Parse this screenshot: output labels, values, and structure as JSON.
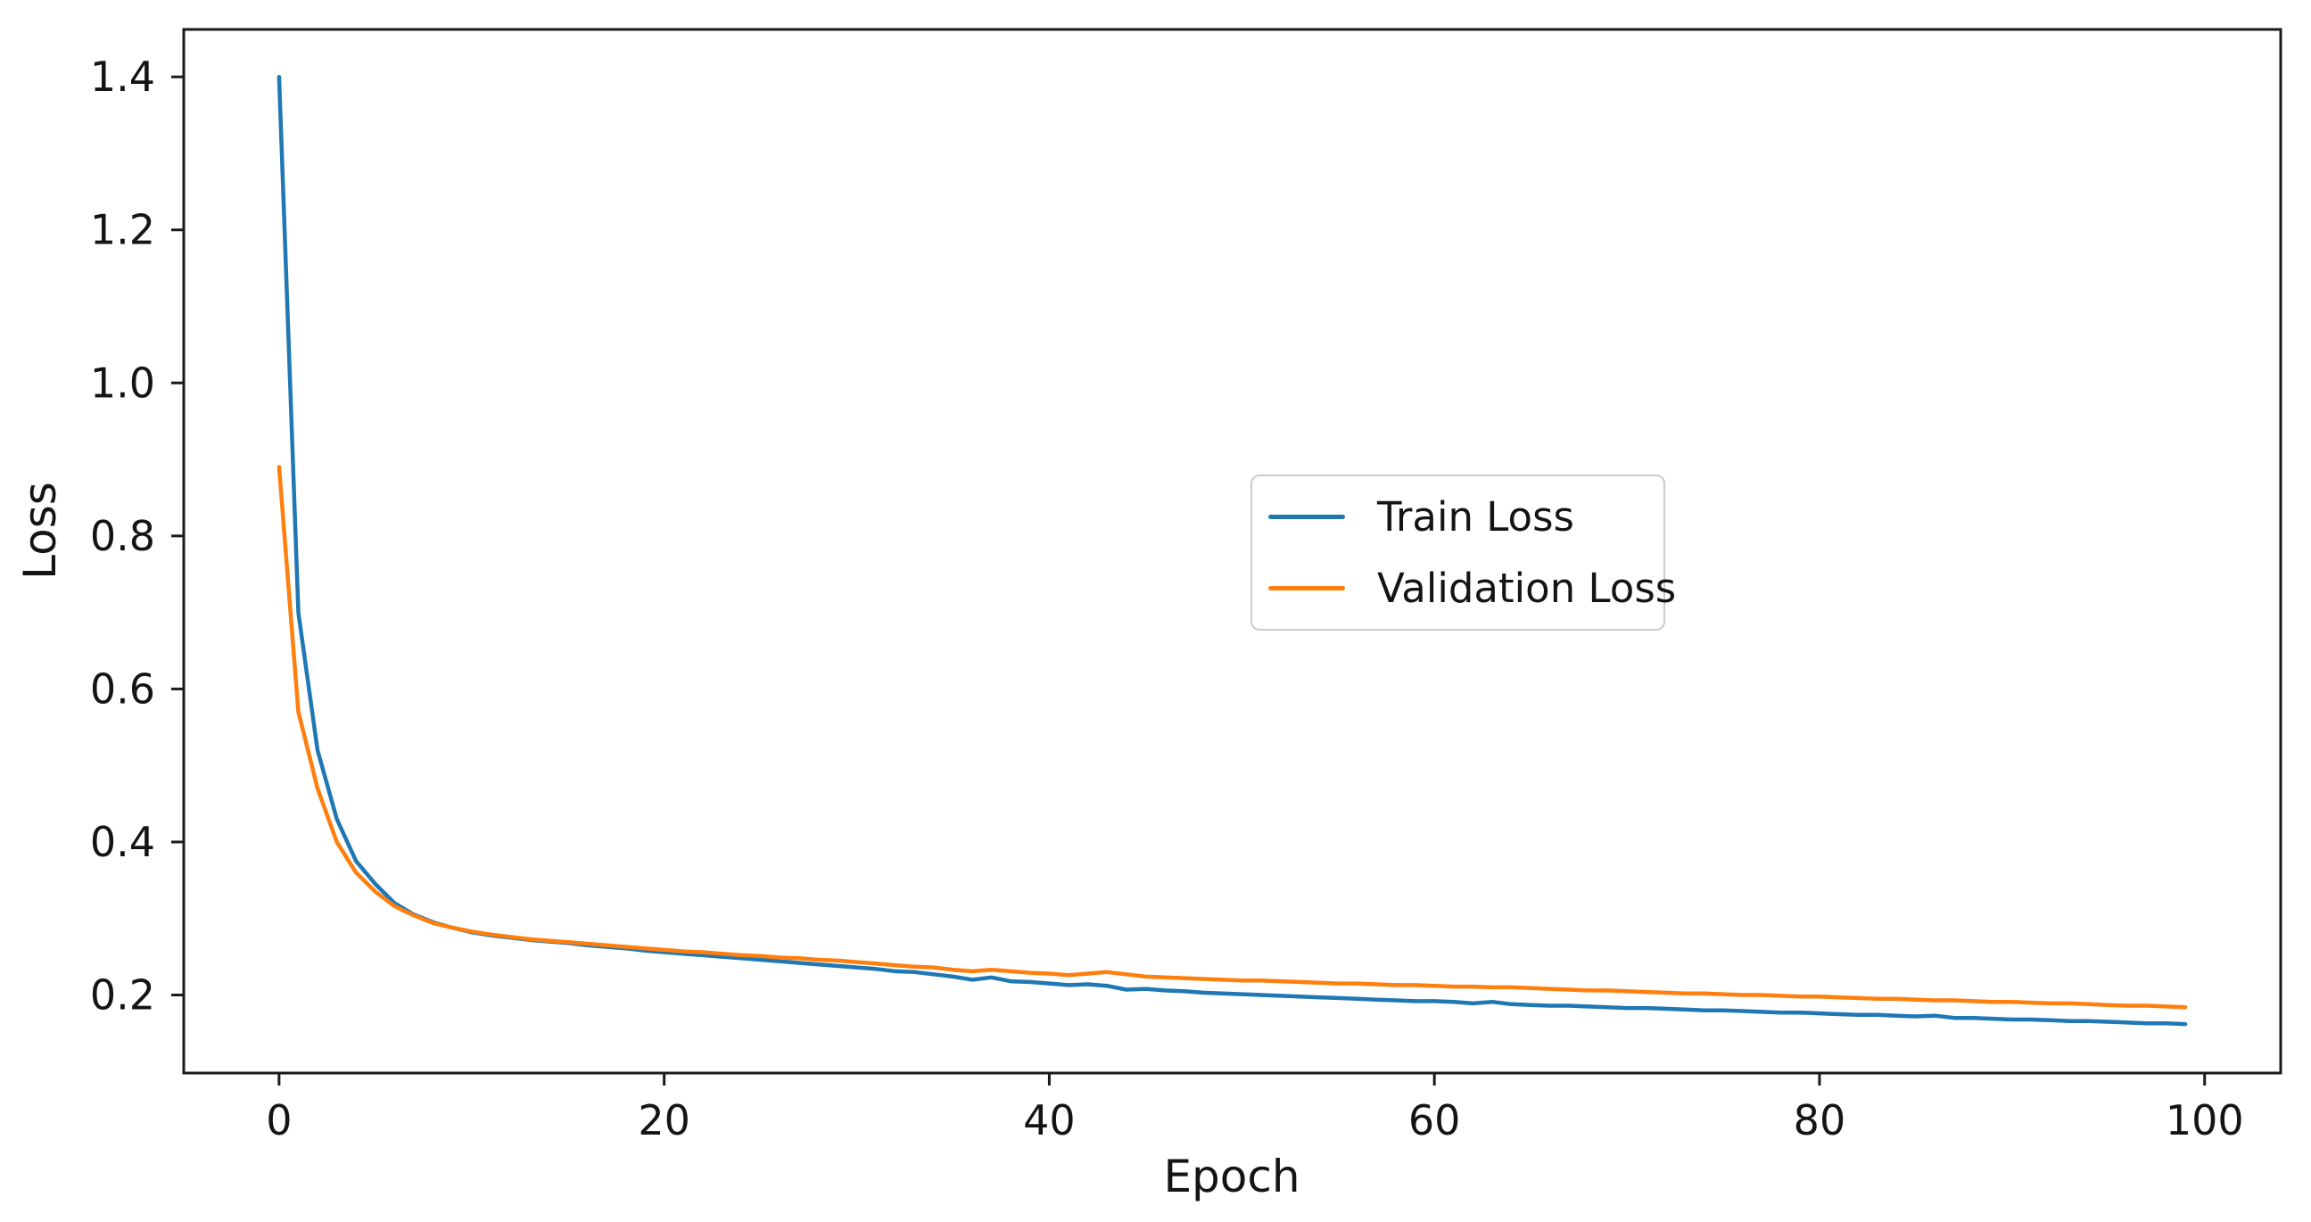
{
  "chart_data": {
    "type": "line",
    "title": "",
    "xlabel": "Epoch",
    "ylabel": "Loss",
    "grid": false,
    "legend_position": "center-right",
    "xlim": [
      -4.95,
      103.95
    ],
    "ylim": [
      0.098,
      1.462
    ],
    "xticks": {
      "values": [
        0,
        20,
        40,
        60,
        80,
        100
      ],
      "labels": [
        "0",
        "20",
        "40",
        "60",
        "80",
        "100"
      ]
    },
    "yticks": {
      "values": [
        0.2,
        0.4,
        0.6,
        0.8,
        1.0,
        1.2,
        1.4
      ],
      "labels": [
        "0.2",
        "0.4",
        "0.6",
        "0.8",
        "1.0",
        "1.2",
        "1.4"
      ]
    },
    "x": [
      0,
      1,
      2,
      3,
      4,
      5,
      6,
      7,
      8,
      9,
      10,
      11,
      12,
      13,
      14,
      15,
      16,
      17,
      18,
      19,
      20,
      21,
      22,
      23,
      24,
      25,
      26,
      27,
      28,
      29,
      30,
      31,
      32,
      33,
      34,
      35,
      36,
      37,
      38,
      39,
      40,
      41,
      42,
      43,
      44,
      45,
      46,
      47,
      48,
      49,
      50,
      51,
      52,
      53,
      54,
      55,
      56,
      57,
      58,
      59,
      60,
      61,
      62,
      63,
      64,
      65,
      66,
      67,
      68,
      69,
      70,
      71,
      72,
      73,
      74,
      75,
      76,
      77,
      78,
      79,
      80,
      81,
      82,
      83,
      84,
      85,
      86,
      87,
      88,
      89,
      90,
      91,
      92,
      93,
      94,
      95,
      96,
      97,
      98,
      99
    ],
    "series": [
      {
        "name": "Train Loss",
        "color": "#1f77b4",
        "values": [
          1.4,
          0.7,
          0.52,
          0.43,
          0.375,
          0.345,
          0.32,
          0.305,
          0.295,
          0.288,
          0.282,
          0.278,
          0.275,
          0.272,
          0.27,
          0.268,
          0.265,
          0.263,
          0.261,
          0.258,
          0.256,
          0.254,
          0.252,
          0.25,
          0.248,
          0.246,
          0.244,
          0.242,
          0.24,
          0.238,
          0.236,
          0.234,
          0.231,
          0.23,
          0.227,
          0.224,
          0.22,
          0.223,
          0.218,
          0.217,
          0.215,
          0.213,
          0.214,
          0.212,
          0.207,
          0.208,
          0.206,
          0.205,
          0.203,
          0.202,
          0.201,
          0.2,
          0.199,
          0.198,
          0.197,
          0.196,
          0.195,
          0.194,
          0.193,
          0.192,
          0.192,
          0.191,
          0.189,
          0.191,
          0.188,
          0.187,
          0.186,
          0.186,
          0.185,
          0.184,
          0.183,
          0.183,
          0.182,
          0.181,
          0.18,
          0.18,
          0.179,
          0.178,
          0.177,
          0.177,
          0.176,
          0.175,
          0.174,
          0.174,
          0.173,
          0.172,
          0.173,
          0.17,
          0.17,
          0.169,
          0.168,
          0.168,
          0.167,
          0.166,
          0.166,
          0.165,
          0.164,
          0.163,
          0.163,
          0.162
        ]
      },
      {
        "name": "Validation Loss",
        "color": "#ff7f0e",
        "values": [
          0.89,
          0.57,
          0.47,
          0.4,
          0.36,
          0.335,
          0.316,
          0.304,
          0.294,
          0.288,
          0.283,
          0.279,
          0.276,
          0.273,
          0.271,
          0.269,
          0.267,
          0.265,
          0.263,
          0.261,
          0.259,
          0.257,
          0.256,
          0.254,
          0.252,
          0.251,
          0.249,
          0.248,
          0.246,
          0.245,
          0.243,
          0.241,
          0.239,
          0.237,
          0.236,
          0.233,
          0.231,
          0.233,
          0.231,
          0.229,
          0.228,
          0.226,
          0.228,
          0.23,
          0.227,
          0.224,
          0.223,
          0.222,
          0.221,
          0.22,
          0.219,
          0.219,
          0.218,
          0.217,
          0.216,
          0.215,
          0.215,
          0.214,
          0.213,
          0.213,
          0.212,
          0.211,
          0.211,
          0.21,
          0.21,
          0.209,
          0.208,
          0.207,
          0.206,
          0.206,
          0.205,
          0.204,
          0.203,
          0.202,
          0.202,
          0.201,
          0.2,
          0.2,
          0.199,
          0.198,
          0.198,
          0.197,
          0.196,
          0.195,
          0.195,
          0.194,
          0.193,
          0.193,
          0.192,
          0.191,
          0.191,
          0.19,
          0.189,
          0.189,
          0.188,
          0.187,
          0.186,
          0.186,
          0.185,
          0.184
        ]
      }
    ]
  }
}
